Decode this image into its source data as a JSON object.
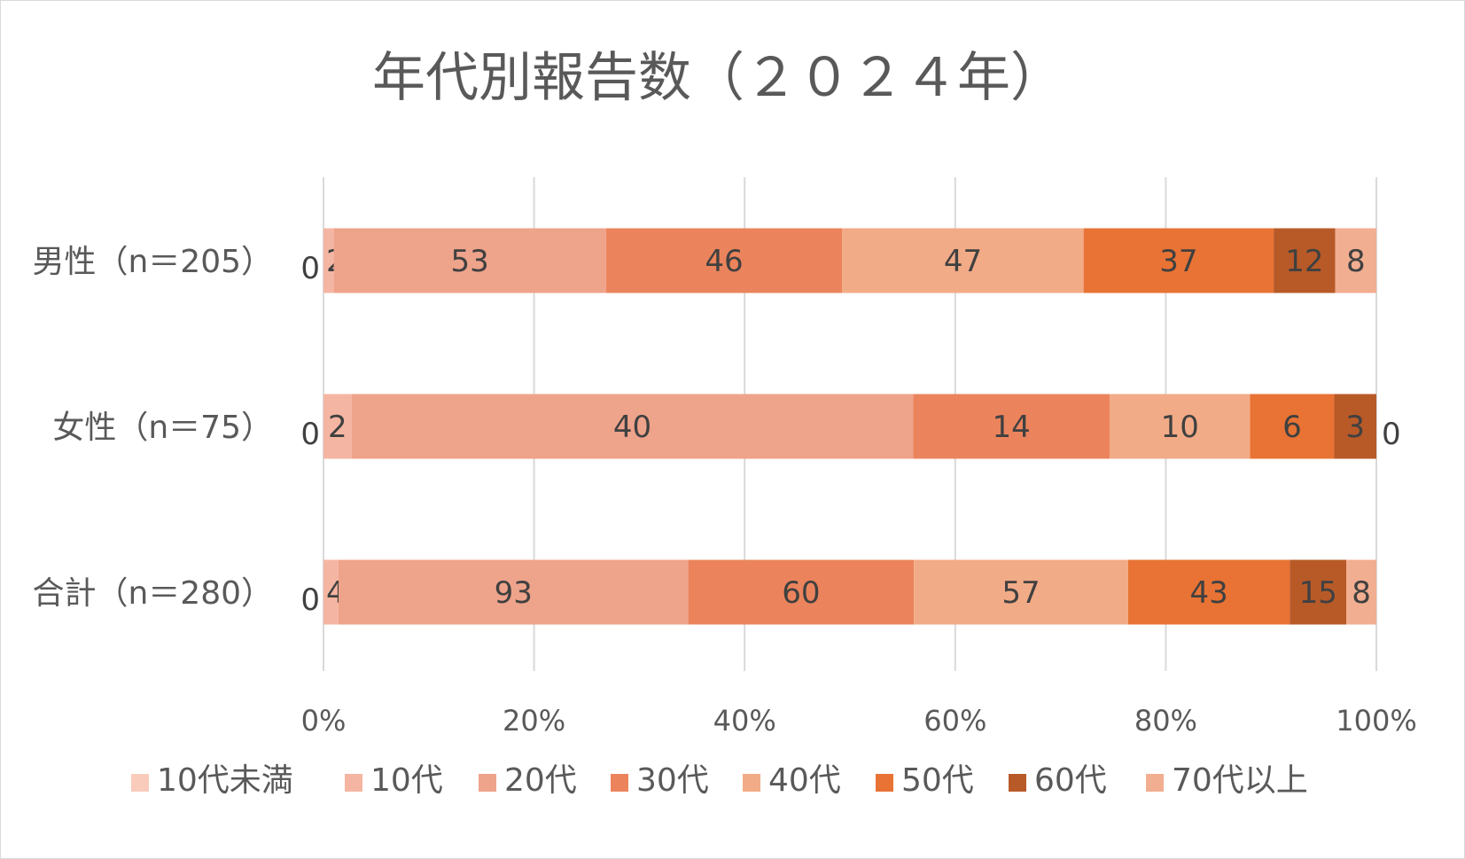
{
  "chart_data": {
    "type": "bar",
    "orientation": "horizontal",
    "stacked": "percent",
    "title": "年代別報告数（２０２４年）",
    "categories": [
      "男性（n＝205）",
      "女性（n＝75）",
      "合計（n＝280）"
    ],
    "series": [
      {
        "name": "10代未満",
        "color": "#f8cbbb",
        "values": [
          0,
          0,
          0
        ]
      },
      {
        "name": "10代",
        "color": "#f4b6a2",
        "values": [
          2,
          2,
          4
        ]
      },
      {
        "name": "20代",
        "color": "#eea38b",
        "values": [
          53,
          40,
          93
        ]
      },
      {
        "name": "30代",
        "color": "#eb845c",
        "values": [
          46,
          14,
          60
        ]
      },
      {
        "name": "40代",
        "color": "#f2ab87",
        "values": [
          47,
          10,
          57
        ]
      },
      {
        "name": "50代",
        "color": "#e87334",
        "values": [
          37,
          6,
          43
        ]
      },
      {
        "name": "60代",
        "color": "#b85a28",
        "values": [
          12,
          3,
          15
        ]
      },
      {
        "name": "70代以上",
        "color": "#f2ae90",
        "values": [
          8,
          0,
          8
        ]
      }
    ],
    "x_ticks": [
      "0%",
      "20%",
      "40%",
      "60%",
      "80%",
      "100%"
    ],
    "xlim": [
      0,
      100
    ],
    "gridlines": true,
    "legend_position": "bottom"
  }
}
